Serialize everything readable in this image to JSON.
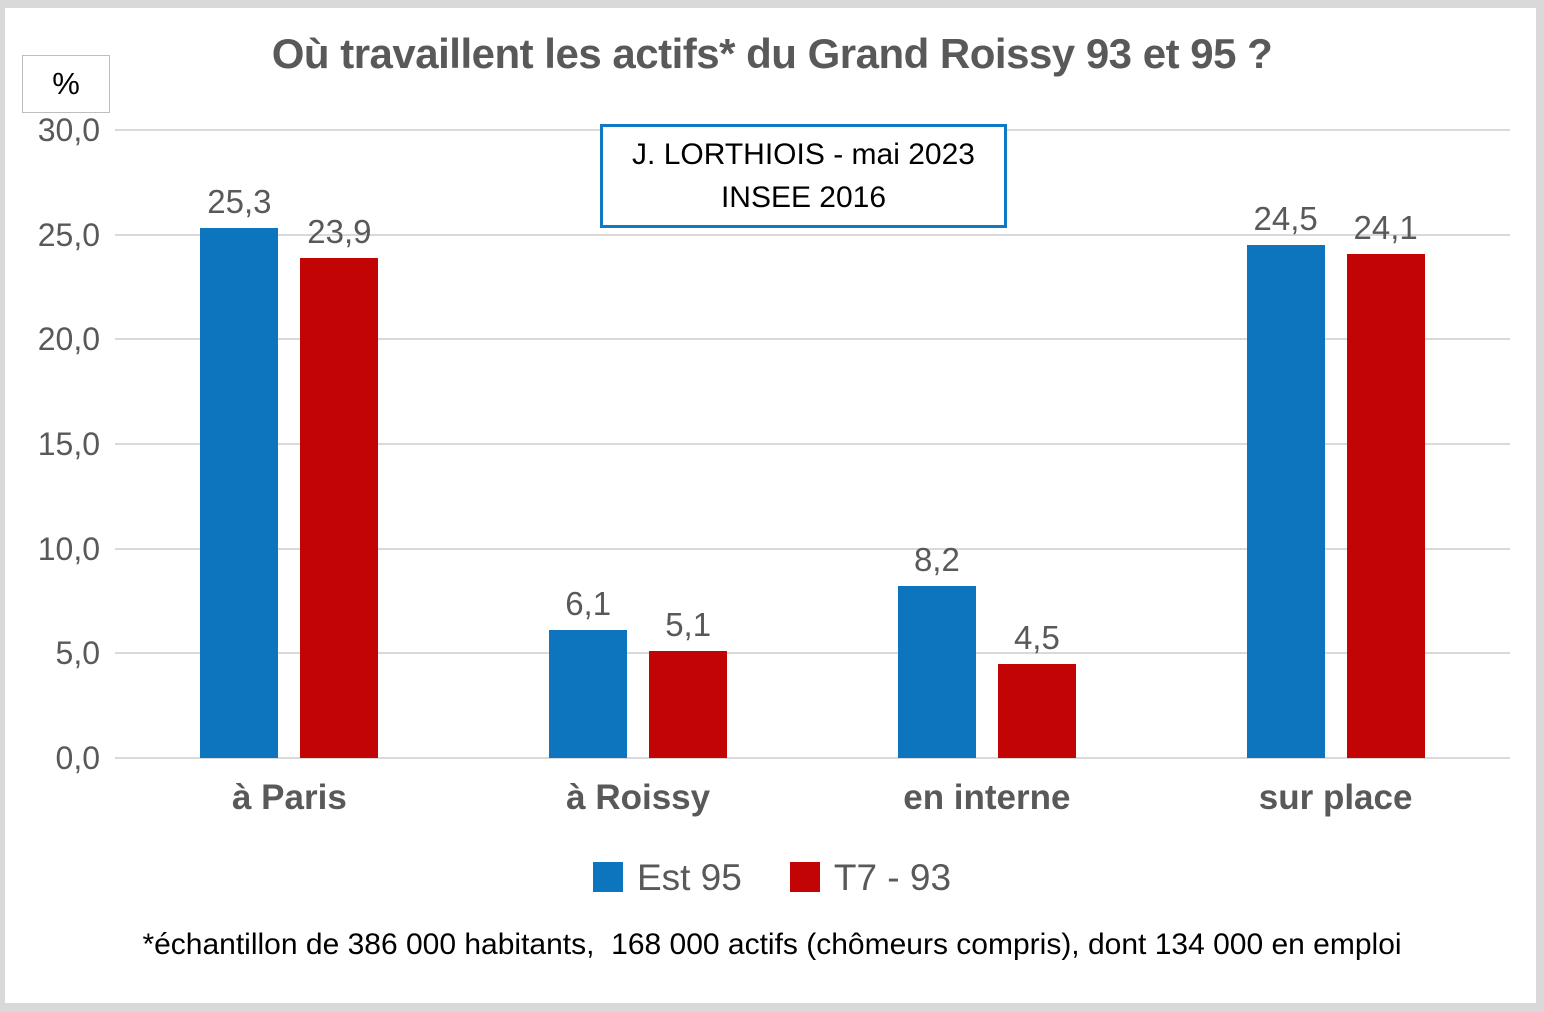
{
  "page": {
    "title": "Où travaillent les actifs* du Grand Roissy 93 et 95 ?",
    "unit_label": "%",
    "annotation": {
      "line1": "J. LORTHIOIS - mai 2023",
      "line2": "INSEE 2016"
    },
    "footnote": "*échantillon de 386 000 habitants,  168 000 actifs (chômeurs compris), dont 134 000 en emploi"
  },
  "colors": {
    "series_blue": "#0D75BE",
    "series_red": "#C20404",
    "axis_text": "#595959",
    "gridline": "#D9D9D9",
    "annotation_border": "#1178C4"
  },
  "chart_data": {
    "type": "bar",
    "title": "Où travaillent les actifs* du Grand Roissy 93 et 95 ?",
    "categories": [
      "à Paris",
      "à Roissy",
      "en interne",
      "sur place"
    ],
    "series": [
      {
        "name": "Est 95",
        "color": "#0D75BE",
        "values": [
          25.3,
          6.1,
          8.2,
          24.5
        ],
        "value_labels": [
          "25,3",
          "6,1",
          "8,2",
          "24,5"
        ]
      },
      {
        "name": "T7 - 93",
        "color": "#C20404",
        "values": [
          23.9,
          5.1,
          4.5,
          24.1
        ],
        "value_labels": [
          "23,9",
          "5,1",
          "4,5",
          "24,1"
        ]
      }
    ],
    "xlabel": "",
    "ylabel": "%",
    "ylim": [
      0,
      30
    ],
    "yticks": [
      {
        "value": 0,
        "label": "0,0"
      },
      {
        "value": 5,
        "label": "5,0"
      },
      {
        "value": 10,
        "label": "10,0"
      },
      {
        "value": 15,
        "label": "15,0"
      },
      {
        "value": 20,
        "label": "20,0"
      },
      {
        "value": 25,
        "label": "25,0"
      },
      {
        "value": 30,
        "label": "30,0"
      }
    ],
    "grid": true,
    "legend_position": "bottom",
    "annotation": "J. LORTHIOIS - mai 2023 / INSEE 2016"
  }
}
